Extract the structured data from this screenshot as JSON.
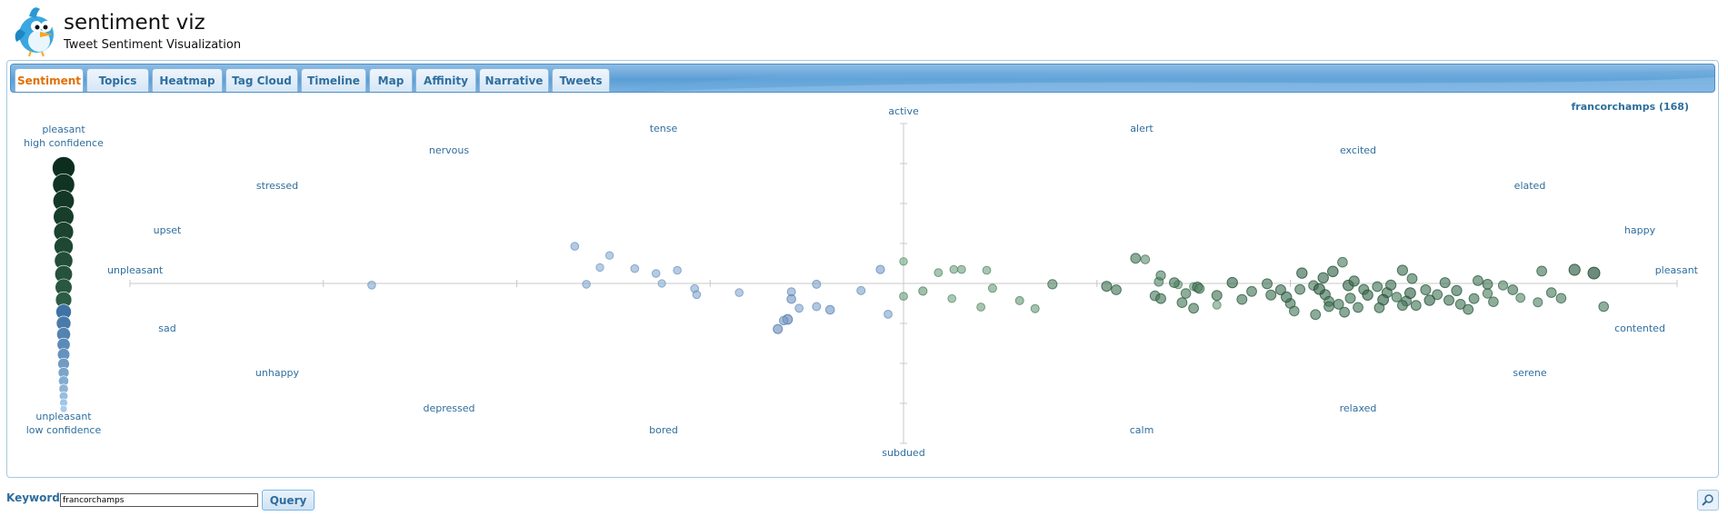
{
  "header": {
    "title": "sentiment viz",
    "subtitle": "Tweet Sentiment Visualization",
    "logo_icon": "twitter-bird-icon"
  },
  "tabs": [
    {
      "id": "sentiment",
      "label": "Sentiment",
      "active": true
    },
    {
      "id": "topics",
      "label": "Topics"
    },
    {
      "id": "heatmap",
      "label": "Heatmap"
    },
    {
      "id": "tagcloud",
      "label": "Tag Cloud"
    },
    {
      "id": "timeline",
      "label": "Timeline"
    },
    {
      "id": "map",
      "label": "Map"
    },
    {
      "id": "affinity",
      "label": "Affinity"
    },
    {
      "id": "narrative",
      "label": "Narrative"
    },
    {
      "id": "tweets",
      "label": "Tweets"
    }
  ],
  "chart": {
    "query_caption": "francorchamps (168)"
  },
  "legend": {
    "top_line1": "pleasant",
    "top_line2": "high confidence",
    "bottom_line1": "unpleasant",
    "bottom_line2": "low confidence"
  },
  "moods": {
    "active": "active",
    "subdued": "subdued",
    "unpleasant": "unpleasant",
    "pleasant": "pleasant",
    "tense": "tense",
    "nervous": "nervous",
    "stressed": "stressed",
    "upset": "upset",
    "alert": "alert",
    "excited": "excited",
    "elated": "elated",
    "happy": "happy",
    "sad": "sad",
    "unhappy": "unhappy",
    "depressed": "depressed",
    "bored": "bored",
    "contented": "contented",
    "serene": "serene",
    "relaxed": "relaxed",
    "calm": "calm"
  },
  "query_bar": {
    "label": "Keywords:",
    "value": "francorchamps",
    "button": "Query",
    "zoom_icon": "magnifier-icon"
  },
  "colors": {
    "accent": "#2e6e9e",
    "active_tab": "#e17009",
    "pleasant_high": "#0d2e1f",
    "unpleasant_low": "#a4c8e8"
  },
  "chart_data": {
    "type": "scatter",
    "x_meaning": "valence",
    "y_meaning": "arousal",
    "xlim": [
      1,
      9
    ],
    "ylim": [
      1,
      9
    ],
    "points": [
      [
        2.25,
        4.96,
        0.26
      ],
      [
        5.18,
        5.27,
        0.28
      ],
      [
        5.3,
        5.35,
        0.28
      ],
      [
        5.43,
        5.33,
        0.27
      ],
      [
        5.46,
        4.88,
        0.3
      ],
      [
        5.6,
        4.57,
        0.32
      ],
      [
        5.68,
        4.37,
        0.31
      ],
      [
        6.2,
        5.63,
        0.58
      ],
      [
        6.42,
        4.97,
        0.32
      ],
      [
        6.5,
        4.92,
        0.3
      ],
      [
        6.62,
        4.46,
        0.3
      ],
      [
        6.3,
        4.69,
        0.56
      ],
      [
        6.05,
        4.93,
        0.62
      ],
      [
        6.32,
        5.04,
        0.45
      ],
      [
        6.4,
        5.02,
        0.6
      ],
      [
        6.52,
        4.91,
        0.62
      ],
      [
        6.53,
        4.87,
        0.52
      ],
      [
        6.46,
        4.75,
        0.55
      ],
      [
        6.33,
        4.62,
        0.6
      ],
      [
        6.44,
        4.52,
        0.58
      ],
      [
        6.5,
        4.38,
        0.58
      ],
      [
        6.8,
        4.8,
        0.6
      ],
      [
        6.9,
        4.71,
        0.62
      ],
      [
        7.05,
        4.85,
        0.6
      ],
      [
        7.12,
        4.95,
        0.55
      ],
      [
        7.18,
        4.72,
        0.65
      ],
      [
        7.2,
        4.55,
        0.6
      ],
      [
        7.25,
        4.48,
        0.6
      ],
      [
        7.31,
        4.63,
        0.62
      ],
      [
        7.35,
        4.4,
        0.6
      ],
      [
        7.38,
        4.85,
        0.62
      ],
      [
        7.45,
        4.92,
        0.6
      ],
      [
        7.5,
        4.77,
        0.62
      ],
      [
        7.55,
        4.66,
        0.55
      ],
      [
        7.6,
        4.56,
        0.6
      ],
      [
        7.65,
        4.45,
        0.6
      ],
      [
        7.7,
        4.84,
        0.62
      ],
      [
        7.76,
        4.72,
        0.58
      ],
      [
        7.82,
        4.58,
        0.62
      ],
      [
        7.88,
        4.48,
        0.6
      ],
      [
        7.95,
        4.62,
        0.6
      ],
      [
        8.02,
        4.75,
        0.52
      ],
      [
        8.1,
        4.95,
        0.5
      ],
      [
        8.19,
        4.64,
        0.45
      ],
      [
        8.28,
        4.53,
        0.48
      ],
      [
        8.62,
        4.42,
        0.55
      ],
      [
        6.25,
        5.6,
        0.4
      ],
      [
        6.33,
        5.2,
        0.5
      ],
      [
        6.1,
        4.84,
        0.6
      ],
      [
        5.77,
        4.98,
        0.5
      ],
      [
        7.06,
        5.26,
        0.7
      ],
      [
        7.22,
        5.3,
        0.72
      ],
      [
        7.27,
        5.53,
        0.55
      ],
      [
        7.58,
        5.33,
        0.65
      ],
      [
        8.3,
        5.31,
        0.6
      ],
      [
        8.47,
        5.34,
        0.8
      ],
      [
        8.57,
        5.26,
        0.95
      ],
      [
        6.7,
        5.02,
        0.7
      ],
      [
        6.88,
        4.99,
        0.62
      ],
      [
        7.0,
        4.5,
        0.6
      ],
      [
        6.98,
        4.66,
        0.68
      ],
      [
        7.15,
        4.86,
        0.76
      ],
      [
        7.3,
        4.95,
        0.72
      ],
      [
        7.4,
        4.71,
        0.7
      ],
      [
        7.48,
        4.59,
        0.75
      ],
      [
        7.62,
        4.76,
        0.74
      ],
      [
        7.72,
        4.58,
        0.7
      ],
      [
        7.86,
        4.82,
        0.66
      ],
      [
        7.92,
        4.35,
        0.6
      ],
      [
        8.02,
        4.98,
        0.6
      ],
      [
        7.02,
        4.31,
        0.55
      ],
      [
        7.13,
        4.22,
        0.58
      ],
      [
        7.2,
        4.42,
        0.6
      ],
      [
        6.62,
        4.7,
        0.62
      ],
      [
        6.75,
        4.6,
        0.6
      ],
      [
        6.95,
        4.84,
        0.64
      ],
      [
        7.17,
        5.14,
        0.7
      ],
      [
        7.33,
        5.06,
        0.66
      ],
      [
        7.52,
        4.96,
        0.65
      ],
      [
        7.63,
        5.12,
        0.6
      ],
      [
        7.8,
        5.02,
        0.62
      ],
      [
        7.97,
        5.07,
        0.6
      ],
      [
        8.05,
        4.54,
        0.56
      ],
      [
        8.15,
        4.84,
        0.6
      ],
      [
        8.35,
        4.77,
        0.56
      ],
      [
        8.4,
        4.63,
        0.55
      ],
      [
        7.28,
        4.28,
        0.6
      ],
      [
        7.46,
        4.39,
        0.6
      ],
      [
        7.58,
        4.45,
        0.6
      ],
      [
        5.4,
        4.41,
        0.28
      ],
      [
        5.0,
        5.55,
        0.22
      ],
      [
        5.1,
        4.81,
        0.35
      ],
      [
        4.42,
        4.79,
        0.3
      ],
      [
        4.46,
        4.38,
        0.28
      ],
      [
        4.15,
        4.77,
        0.24
      ],
      [
        3.92,
        4.87,
        0.24
      ],
      [
        3.93,
        4.72,
        0.26
      ],
      [
        3.83,
        5.33,
        0.24
      ],
      [
        3.72,
        5.25,
        0.24
      ],
      [
        3.75,
        5.0,
        0.2
      ],
      [
        3.61,
        5.37,
        0.24
      ],
      [
        3.48,
        5.7,
        0.22
      ],
      [
        4.55,
        4.98,
        0.3
      ],
      [
        4.42,
        4.61,
        0.4
      ],
      [
        4.4,
        4.1,
        0.55
      ],
      [
        4.35,
        3.86,
        0.48
      ],
      [
        4.62,
        4.34,
        0.4
      ],
      [
        4.55,
        4.42,
        0.3
      ],
      [
        4.78,
        4.82,
        0.3
      ],
      [
        4.92,
        4.23,
        0.28
      ],
      [
        5.26,
        5.35,
        0.26
      ],
      [
        3.3,
        5.93,
        0.26
      ],
      [
        3.43,
        5.4,
        0.22
      ],
      [
        3.36,
        4.98,
        0.24
      ],
      [
        4.38,
        4.07,
        0.36
      ],
      [
        4.88,
        5.35,
        0.34
      ],
      [
        5.0,
        4.68,
        0.28
      ],
      [
        5.25,
        4.62,
        0.24
      ]
    ]
  }
}
